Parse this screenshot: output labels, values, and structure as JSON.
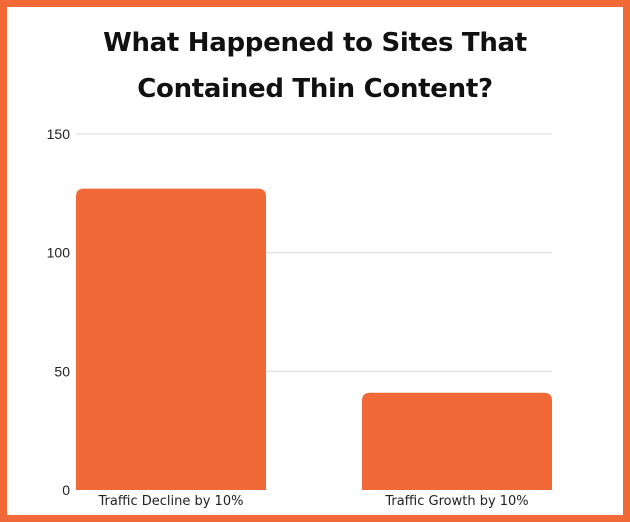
{
  "chart_data": {
    "type": "bar",
    "title_lines": [
      "What Happened to Sites That",
      "Contained Thin Content?"
    ],
    "categories": [
      "Traffic Decline by 10%",
      "Traffic Growth by 10%"
    ],
    "values": [
      127,
      41
    ],
    "ylim": [
      0,
      150
    ],
    "yticks": [
      0,
      50,
      100,
      150
    ],
    "grid": true,
    "bar_color": "#f26938",
    "border_color": "#f26938",
    "xlabel": "",
    "ylabel": ""
  }
}
